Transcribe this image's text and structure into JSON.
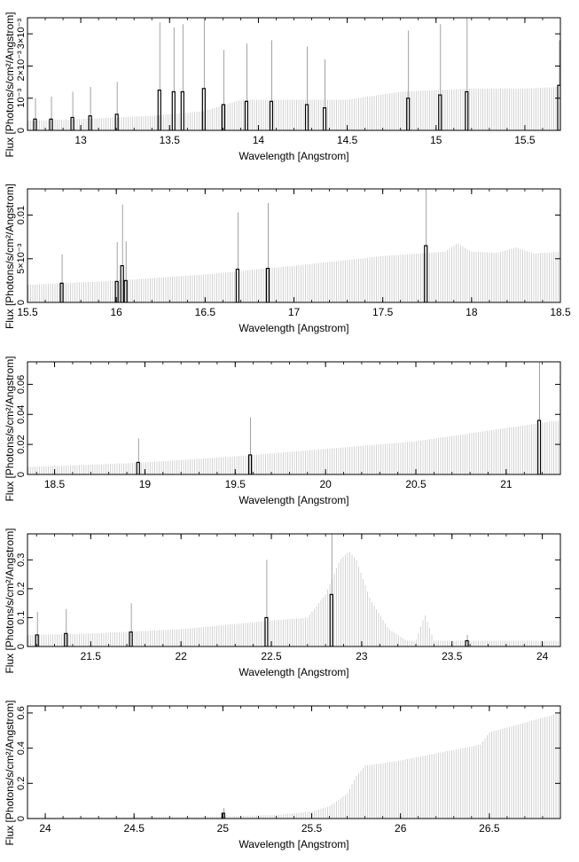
{
  "chart_data": [
    {
      "type": "bar",
      "xlabel": "Wavelength [Angstrom]",
      "ylabel": "Flux [Photons/s/cm²/Angstrom]",
      "xlim": [
        12.7,
        15.7
      ],
      "ylim": [
        0,
        0.0035
      ],
      "xticks": [
        {
          "v": 13,
          "label": "13"
        },
        {
          "v": 13.5,
          "label": "13.5"
        },
        {
          "v": 14,
          "label": "14"
        },
        {
          "v": 14.5,
          "label": "14.5"
        },
        {
          "v": 15,
          "label": "15"
        },
        {
          "v": 15.5,
          "label": "15.5"
        }
      ],
      "yticks": [
        {
          "v": 0,
          "label": "0"
        },
        {
          "v": 0.001,
          "label": "10⁻³"
        },
        {
          "v": 0.002,
          "label": "2×10⁻³"
        },
        {
          "v": 0.003,
          "label": "3×10⁻³"
        }
      ],
      "continuum": {
        "x": [
          12.7,
          13.0,
          13.4,
          13.7,
          13.9,
          14.2,
          14.5,
          14.8,
          15.0,
          15.2,
          15.5,
          15.7
        ],
        "y": [
          0.0003,
          0.00035,
          0.00045,
          0.0006,
          0.00095,
          0.00095,
          0.00095,
          0.0012,
          0.00125,
          0.0013,
          0.0013,
          0.00135
        ]
      },
      "bins": [
        {
          "x": 12.74,
          "y": 0.00035,
          "err": 0.00065
        },
        {
          "x": 12.83,
          "y": 0.00035,
          "err": 0.0007
        },
        {
          "x": 12.95,
          "y": 0.0004,
          "err": 0.0008
        },
        {
          "x": 13.05,
          "y": 0.00045,
          "err": 0.0009
        },
        {
          "x": 13.2,
          "y": 0.0005,
          "err": 0.001
        },
        {
          "x": 13.44,
          "y": 0.00125,
          "err": 0.0021
        },
        {
          "x": 13.52,
          "y": 0.0012,
          "err": 0.002
        },
        {
          "x": 13.57,
          "y": 0.0012,
          "err": 0.0021
        },
        {
          "x": 13.69,
          "y": 0.0013,
          "err": 0.0023
        },
        {
          "x": 13.8,
          "y": 0.0008,
          "err": 0.0017
        },
        {
          "x": 13.93,
          "y": 0.0009,
          "err": 0.0018
        },
        {
          "x": 14.07,
          "y": 0.0009,
          "err": 0.0019
        },
        {
          "x": 14.27,
          "y": 0.0008,
          "err": 0.0018
        },
        {
          "x": 14.37,
          "y": 0.0007,
          "err": 0.0015
        },
        {
          "x": 14.84,
          "y": 0.001,
          "err": 0.0021
        },
        {
          "x": 15.02,
          "y": 0.0011,
          "err": 0.0022
        },
        {
          "x": 15.17,
          "y": 0.0012,
          "err": 0.0025
        },
        {
          "x": 15.69,
          "y": 0.0014,
          "err": 0.0014
        }
      ]
    },
    {
      "type": "bar",
      "xlabel": "Wavelength [Angstrom]",
      "ylabel": "Flux [Photons/s/cm²/Angstrom]",
      "xlim": [
        15.5,
        18.5
      ],
      "ylim": [
        0,
        0.013
      ],
      "xticks": [
        {
          "v": 15.5,
          "label": "15.5"
        },
        {
          "v": 16,
          "label": "16"
        },
        {
          "v": 16.5,
          "label": "16.5"
        },
        {
          "v": 17,
          "label": "17"
        },
        {
          "v": 17.5,
          "label": "17.5"
        },
        {
          "v": 18,
          "label": "18"
        },
        {
          "v": 18.5,
          "label": "18.5"
        }
      ],
      "yticks": [
        {
          "v": 0,
          "label": "0"
        },
        {
          "v": 0.005,
          "label": "5×10⁻³"
        },
        {
          "v": 0.01,
          "label": "0.01"
        }
      ],
      "continuum": {
        "x": [
          15.5,
          16.0,
          16.5,
          17.0,
          17.5,
          17.85,
          17.92,
          18.0,
          18.15,
          18.25,
          18.35,
          18.5
        ],
        "y": [
          0.002,
          0.0025,
          0.0032,
          0.0042,
          0.0053,
          0.0058,
          0.0068,
          0.0058,
          0.0057,
          0.0063,
          0.0056,
          0.0058
        ]
      },
      "bins": [
        {
          "x": 15.69,
          "y": 0.0022,
          "err": 0.0033
        },
        {
          "x": 16.0,
          "y": 0.0024,
          "err": 0.0045
        },
        {
          "x": 16.03,
          "y": 0.0042,
          "err": 0.007
        },
        {
          "x": 16.05,
          "y": 0.0025,
          "err": 0.0045
        },
        {
          "x": 16.68,
          "y": 0.0038,
          "err": 0.0065
        },
        {
          "x": 16.85,
          "y": 0.0039,
          "err": 0.0075
        },
        {
          "x": 17.74,
          "y": 0.0065,
          "err": 0.0128
        }
      ]
    },
    {
      "type": "bar",
      "xlabel": "Wavelength [Angstrom]",
      "ylabel": "Flux [Photons/s/cm²/Angstrom]",
      "xlim": [
        18.35,
        21.3
      ],
      "ylim": [
        0,
        0.075
      ],
      "xticks": [
        {
          "v": 18.5,
          "label": "18.5"
        },
        {
          "v": 19,
          "label": "19"
        },
        {
          "v": 19.5,
          "label": "19.5"
        },
        {
          "v": 20,
          "label": "20"
        },
        {
          "v": 20.5,
          "label": "20.5"
        },
        {
          "v": 21,
          "label": "21"
        }
      ],
      "yticks": [
        {
          "v": 0,
          "label": "0"
        },
        {
          "v": 0.02,
          "label": "0.02"
        },
        {
          "v": 0.04,
          "label": "0.04"
        },
        {
          "v": 0.06,
          "label": "0.06"
        }
      ],
      "continuum": {
        "x": [
          18.35,
          18.6,
          19.0,
          19.5,
          20.0,
          20.5,
          21.0,
          21.3
        ],
        "y": [
          0.005,
          0.006,
          0.008,
          0.012,
          0.017,
          0.022,
          0.031,
          0.036
        ]
      },
      "bins": [
        {
          "x": 18.96,
          "y": 0.008,
          "err": 0.016
        },
        {
          "x": 19.58,
          "y": 0.013,
          "err": 0.025
        },
        {
          "x": 21.18,
          "y": 0.036,
          "err": 0.075
        }
      ]
    },
    {
      "type": "bar",
      "xlabel": "Wavelength [Angstrom]",
      "ylabel": "Flux [Photons/s/cm²/Angstrom]",
      "xlim": [
        21.15,
        24.1
      ],
      "ylim": [
        0,
        0.39
      ],
      "xticks": [
        {
          "v": 21.5,
          "label": "21.5"
        },
        {
          "v": 22,
          "label": "22"
        },
        {
          "v": 22.5,
          "label": "22.5"
        },
        {
          "v": 23,
          "label": "23"
        },
        {
          "v": 23.5,
          "label": "23.5"
        },
        {
          "v": 24,
          "label": "24"
        }
      ],
      "yticks": [
        {
          "v": 0,
          "label": "0"
        },
        {
          "v": 0.1,
          "label": "0.1"
        },
        {
          "v": 0.2,
          "label": "0.2"
        },
        {
          "v": 0.3,
          "label": "0.3"
        }
      ],
      "continuum": {
        "x": [
          21.15,
          21.5,
          22.0,
          22.5,
          22.7,
          22.8,
          22.88,
          22.93,
          22.97,
          23.05,
          23.15,
          23.25,
          23.3,
          23.35,
          23.4,
          23.5,
          24.1
        ],
        "y": [
          0.04,
          0.045,
          0.06,
          0.09,
          0.1,
          0.18,
          0.3,
          0.33,
          0.3,
          0.16,
          0.06,
          0.02,
          0.02,
          0.11,
          0.02,
          0.02,
          0.02
        ]
      },
      "bins": [
        {
          "x": 21.2,
          "y": 0.04,
          "err": 0.08
        },
        {
          "x": 21.36,
          "y": 0.045,
          "err": 0.085
        },
        {
          "x": 21.72,
          "y": 0.05,
          "err": 0.1
        },
        {
          "x": 22.47,
          "y": 0.1,
          "err": 0.2
        },
        {
          "x": 22.83,
          "y": 0.18,
          "err": 0.36
        },
        {
          "x": 23.58,
          "y": 0.02,
          "err": 0.02
        }
      ]
    },
    {
      "type": "bar",
      "xlabel": "Wavelength [Angstrom]",
      "ylabel": "Flux [Photons/s/cm²/Angstrom]",
      "xlim": [
        23.9,
        26.9
      ],
      "ylim": [
        0,
        0.64
      ],
      "xticks": [
        {
          "v": 24,
          "label": "24"
        },
        {
          "v": 24.5,
          "label": "24.5"
        },
        {
          "v": 25,
          "label": "25"
        },
        {
          "v": 25.5,
          "label": "25.5"
        },
        {
          "v": 26,
          "label": "26"
        },
        {
          "v": 26.5,
          "label": "26.5"
        }
      ],
      "yticks": [
        {
          "v": 0,
          "label": "0"
        },
        {
          "v": 0.2,
          "label": "0.2"
        },
        {
          "v": 0.4,
          "label": "0.4"
        },
        {
          "v": 0.6,
          "label": "0.6"
        }
      ],
      "continuum": {
        "x": [
          23.9,
          24.5,
          25.0,
          25.3,
          25.5,
          25.6,
          25.7,
          25.75,
          25.8,
          26.0,
          26.45,
          26.5,
          26.9
        ],
        "y": [
          0.005,
          0.008,
          0.012,
          0.02,
          0.04,
          0.07,
          0.14,
          0.24,
          0.3,
          0.33,
          0.42,
          0.49,
          0.6
        ]
      },
      "bins": [
        {
          "x": 25.0,
          "y": 0.03,
          "err": 0.03
        }
      ]
    }
  ]
}
